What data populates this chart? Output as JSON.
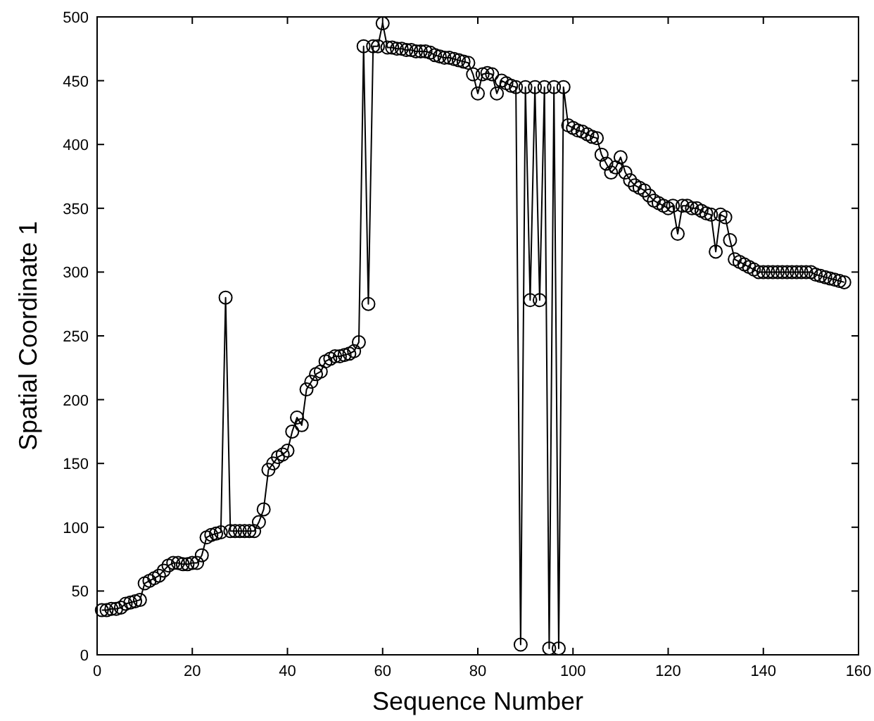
{
  "chart_data": {
    "type": "line",
    "xlabel": "Sequence Number",
    "ylabel": "Spatial Coordinate 1",
    "xlim": [
      0,
      160
    ],
    "xticks": [
      0,
      20,
      40,
      60,
      80,
      100,
      120,
      140,
      160
    ],
    "ylim": [
      0,
      500
    ],
    "yticks": [
      0,
      50,
      100,
      150,
      200,
      250,
      300,
      350,
      400,
      450,
      500
    ],
    "marker": "circle",
    "line_style": "solid",
    "grid": false,
    "x": [
      1,
      2,
      3,
      4,
      5,
      6,
      7,
      8,
      9,
      10,
      11,
      12,
      13,
      14,
      15,
      16,
      17,
      18,
      19,
      20,
      21,
      22,
      23,
      24,
      25,
      26,
      27,
      28,
      29,
      30,
      31,
      32,
      33,
      34,
      35,
      36,
      37,
      38,
      39,
      40,
      41,
      42,
      43,
      44,
      45,
      46,
      47,
      48,
      49,
      50,
      51,
      52,
      53,
      54,
      55,
      56,
      57,
      58,
      59,
      60,
      61,
      62,
      63,
      64,
      65,
      66,
      67,
      68,
      69,
      70,
      71,
      72,
      73,
      74,
      75,
      76,
      77,
      78,
      79,
      80,
      81,
      82,
      83,
      84,
      85,
      86,
      87,
      88,
      89,
      90,
      91,
      92,
      93,
      94,
      95,
      96,
      97,
      98,
      99,
      100,
      101,
      102,
      103,
      104,
      105,
      106,
      107,
      108,
      109,
      110,
      111,
      112,
      113,
      114,
      115,
      116,
      117,
      118,
      119,
      120,
      121,
      122,
      123,
      124,
      125,
      126,
      127,
      128,
      129,
      130,
      131,
      132,
      133,
      134,
      135,
      136,
      137,
      138,
      139,
      140,
      141,
      142,
      143,
      144,
      145,
      146,
      147,
      148,
      149,
      150,
      151,
      152,
      153,
      154,
      155,
      156,
      157
    ],
    "series": [
      {
        "color": "#000000",
        "values": [
          35,
          35,
          36,
          36,
          37,
          40,
          41,
          42,
          43,
          56,
          58,
          60,
          62,
          66,
          70,
          72,
          72,
          71,
          71,
          72,
          72,
          78,
          92,
          94,
          95,
          96,
          280,
          97,
          97,
          97,
          97,
          97,
          97,
          104,
          114,
          145,
          150,
          155,
          157,
          160,
          175,
          186,
          180,
          208,
          214,
          220,
          222,
          230,
          232,
          234,
          234,
          235,
          236,
          238,
          245,
          477,
          275,
          477,
          477,
          495,
          476,
          476,
          475,
          475,
          474,
          474,
          473,
          473,
          473,
          472,
          470,
          469,
          468,
          468,
          467,
          466,
          465,
          464,
          455,
          440,
          455,
          456,
          455,
          440,
          450,
          448,
          446,
          445,
          8,
          445,
          278,
          445,
          278,
          445,
          5,
          445,
          5,
          445,
          415,
          413,
          411,
          410,
          408,
          406,
          405,
          392,
          385,
          378,
          382,
          390,
          378,
          372,
          368,
          366,
          364,
          360,
          356,
          354,
          352,
          350,
          352,
          330,
          352,
          352,
          350,
          350,
          348,
          346,
          345,
          316,
          345,
          343,
          325,
          310,
          308,
          306,
          304,
          302,
          300,
          300,
          300,
          300,
          300,
          300,
          300,
          300,
          300,
          300,
          300,
          300,
          298,
          297,
          296,
          295,
          294,
          293,
          292
        ]
      }
    ]
  }
}
